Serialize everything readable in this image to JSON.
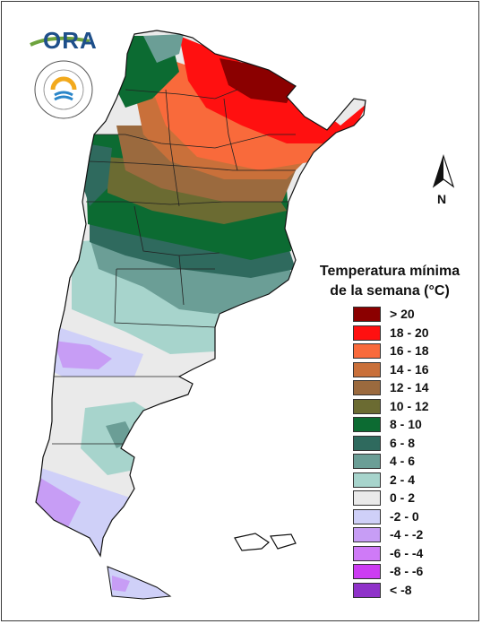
{
  "logos": {
    "ora_text": "ORA",
    "smn_seal_text": "SERVICIO METEOROLÓGICO NACIONAL · ARGENTINA"
  },
  "north_arrow": {
    "label": "N"
  },
  "legend": {
    "title_line1": "Temperatura mínima",
    "title_line2": "de la semana (°C)",
    "classes": [
      {
        "label": "> 20",
        "color": "#8b0000"
      },
      {
        "label": "18 - 20",
        "color": "#ff1010"
      },
      {
        "label": "16 - 18",
        "color": "#f96a3b"
      },
      {
        "label": "14 - 16",
        "color": "#c9703a"
      },
      {
        "label": "12 - 14",
        "color": "#9b6a3e"
      },
      {
        "label": "10 - 12",
        "color": "#6b6b32"
      },
      {
        "label": "8 - 10",
        "color": "#0c6b32"
      },
      {
        "label": "6 - 8",
        "color": "#2f6a5e"
      },
      {
        "label": "4 - 6",
        "color": "#6b9e96"
      },
      {
        "label": "2 - 4",
        "color": "#a7d4cc"
      },
      {
        "label": "0 - 2",
        "color": "#eaeaea"
      },
      {
        "label": "-2 - 0",
        "color": "#cfd0f8"
      },
      {
        "label": "-4 - -2",
        "color": "#c79df5"
      },
      {
        "label": "-6 - -4",
        "color": "#cf7af7"
      },
      {
        "label": "-8 - -6",
        "color": "#cc3cf2"
      },
      {
        "label": "< -8",
        "color": "#8f32c9"
      }
    ]
  }
}
